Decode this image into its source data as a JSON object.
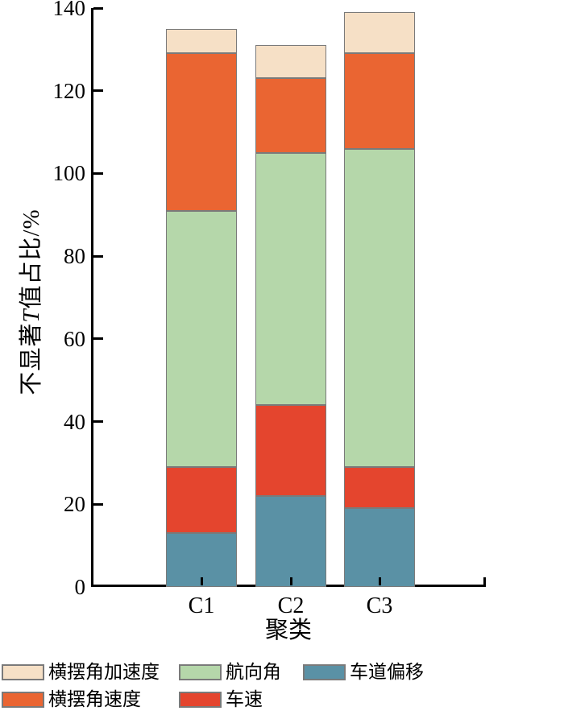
{
  "chart_data": {
    "type": "bar",
    "stacked": true,
    "categories": [
      "C1",
      "C2",
      "C3"
    ],
    "series": [
      {
        "name": "车道偏移",
        "key": "lane-deviation",
        "color": "#5A91A5",
        "values": [
          13,
          22,
          19
        ]
      },
      {
        "name": "车速",
        "key": "vehicle-speed",
        "color": "#E4452E",
        "values": [
          16,
          22,
          10
        ]
      },
      {
        "name": "航向角",
        "key": "heading-angle",
        "color": "#B5D7AA",
        "values": [
          62,
          61,
          77
        ]
      },
      {
        "name": "横摆角速度",
        "key": "yaw-rate",
        "color": "#EA6532",
        "values": [
          38,
          18,
          23
        ]
      },
      {
        "name": "横摆角加速度",
        "key": "yaw-acceleration",
        "color": "#F6E0C6",
        "values": [
          6,
          8,
          10
        ]
      }
    ],
    "stack_totals": [
      135,
      131,
      139
    ],
    "xlabel": "聚类",
    "ylabel": "不显著T值占比/%",
    "ylabel_parts": {
      "prefix": "不显著",
      "italic": "T",
      "suffix": "值占比/%"
    },
    "ylim": [
      0,
      140
    ],
    "yticks": [
      0,
      20,
      40,
      60,
      80,
      100,
      120,
      140
    ],
    "grid": false,
    "legend_position": "bottom",
    "legend_items": [
      {
        "label": "横摆角加速度",
        "key": "yaw-acceleration",
        "color": "#F6E0C6",
        "row": 0,
        "col": 0
      },
      {
        "label": "航向角",
        "key": "heading-angle",
        "color": "#B5D7AA",
        "row": 0,
        "col": 1
      },
      {
        "label": "车道偏移",
        "key": "lane-deviation",
        "color": "#5A91A5",
        "row": 0,
        "col": 2
      },
      {
        "label": "横摆角速度",
        "key": "yaw-rate",
        "color": "#EA6532",
        "row": 1,
        "col": 0
      },
      {
        "label": "车速",
        "key": "vehicle-speed",
        "color": "#E4452E",
        "row": 1,
        "col": 1
      }
    ],
    "bar_border_color": "#7A7A7A",
    "axis_color": "#000000"
  }
}
